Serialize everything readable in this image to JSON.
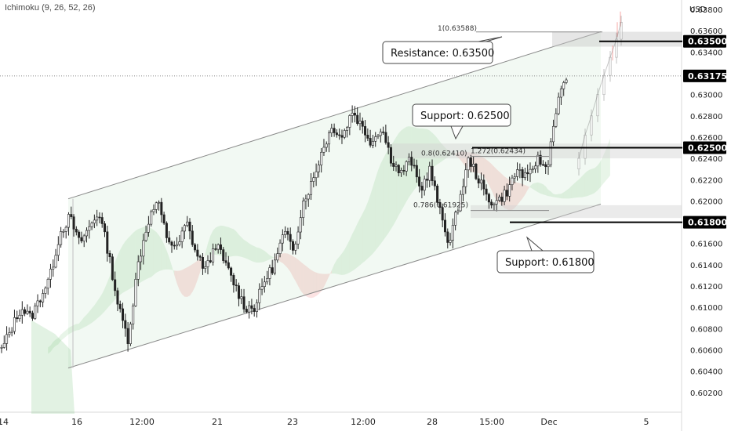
{
  "indicator_label": "Ichimoku (9, 26, 52, 26)",
  "currency": "USD",
  "chart_data": {
    "type": "candlestick",
    "ylim": [
      0.601,
      0.638
    ],
    "y_ticks": [
      "0.60200",
      "0.60400",
      "0.60600",
      "0.60800",
      "0.61000",
      "0.61200",
      "0.61400",
      "0.61600",
      "0.61800",
      "0.62000",
      "0.62200",
      "0.62400",
      "0.62600",
      "0.62800",
      "0.63000",
      "0.63200",
      "0.63400",
      "0.63600",
      "0.63800"
    ],
    "x_ticks": [
      "14",
      "16",
      "12:00",
      "21",
      "23",
      "12:00",
      "28",
      "15:00",
      "Dec",
      "5"
    ],
    "last_price": "0.63175",
    "levels": [
      {
        "label": "0.63500",
        "value": 0.635
      },
      {
        "label": "0.62500",
        "value": 0.625
      },
      {
        "label": "0.61800",
        "value": 0.618
      }
    ],
    "callouts": [
      {
        "text": "Resistance: 0.63500",
        "level": 0.635
      },
      {
        "text": "Support: 0.62500",
        "level": 0.625
      },
      {
        "text": "Support: 0.61800",
        "level": 0.618
      }
    ],
    "fib_labels": [
      {
        "text": "1(0.63588)",
        "value": 0.63588
      },
      {
        "text": "0.8(0.62410)",
        "value": 0.6241
      },
      {
        "text": "1.272(0.62434)",
        "value": 0.62434
      },
      {
        "text": "0.786(0.61925)",
        "value": 0.61925
      }
    ],
    "channel": {
      "upper": [
        [
          0.6202,
          0.6359
        ]
      ],
      "lower": [
        [
          0.6043,
          0.6197
        ]
      ]
    },
    "anchors": [
      0.606,
      0.608,
      0.61,
      0.609,
      0.611,
      0.613,
      0.617,
      0.6185,
      0.616,
      0.6175,
      0.619,
      0.615,
      0.61,
      0.607,
      0.614,
      0.618,
      0.62,
      0.6165,
      0.6155,
      0.618,
      0.615,
      0.6135,
      0.616,
      0.614,
      0.612,
      0.61,
      0.61,
      0.6125,
      0.614,
      0.617,
      0.6155,
      0.62,
      0.622,
      0.625,
      0.627,
      0.626,
      0.6285,
      0.627,
      0.6255,
      0.627,
      0.624,
      0.6225,
      0.624,
      0.621,
      0.623,
      0.619,
      0.616,
      0.62,
      0.624,
      0.622,
      0.62,
      0.62,
      0.621,
      0.623,
      0.622,
      0.624,
      0.623,
      0.629,
      0.6315
    ]
  }
}
